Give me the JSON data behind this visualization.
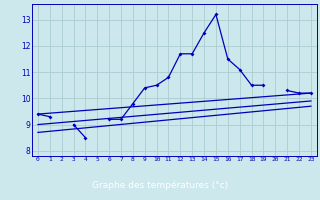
{
  "title": "",
  "xlabel": "Graphe des températures (°c)",
  "ylabel": "",
  "background_color": "#cce8ec",
  "grid_color": "#aaccd0",
  "line_color": "#0000bb",
  "axis_bg": "#0000aa",
  "label_color": "#ffffff",
  "x_hours": [
    0,
    1,
    2,
    3,
    4,
    5,
    6,
    7,
    8,
    9,
    10,
    11,
    12,
    13,
    14,
    15,
    16,
    17,
    18,
    19,
    20,
    21,
    22,
    23
  ],
  "temp_main": [
    9.4,
    9.3,
    null,
    9.0,
    8.5,
    null,
    9.2,
    9.2,
    9.8,
    10.4,
    10.5,
    10.8,
    11.7,
    11.7,
    12.5,
    13.2,
    11.5,
    11.1,
    10.5,
    10.5,
    null,
    10.3,
    10.2,
    10.2
  ],
  "line_straight1": [
    [
      0,
      9.4
    ],
    [
      23,
      10.2
    ]
  ],
  "line_straight2": [
    [
      0,
      9.0
    ],
    [
      23,
      9.9
    ]
  ],
  "line_straight3": [
    [
      0,
      8.7
    ],
    [
      23,
      9.7
    ]
  ],
  "ylim": [
    7.8,
    13.6
  ],
  "xlim": [
    -0.5,
    23.5
  ],
  "yticks": [
    8,
    9,
    10,
    11,
    12,
    13
  ],
  "xtick_labels": [
    "0",
    "1",
    "2",
    "3",
    "4",
    "5",
    "6",
    "7",
    "8",
    "9",
    "10",
    "11",
    "12",
    "13",
    "14",
    "15",
    "16",
    "17",
    "18",
    "19",
    "20",
    "21",
    "22",
    "23"
  ]
}
